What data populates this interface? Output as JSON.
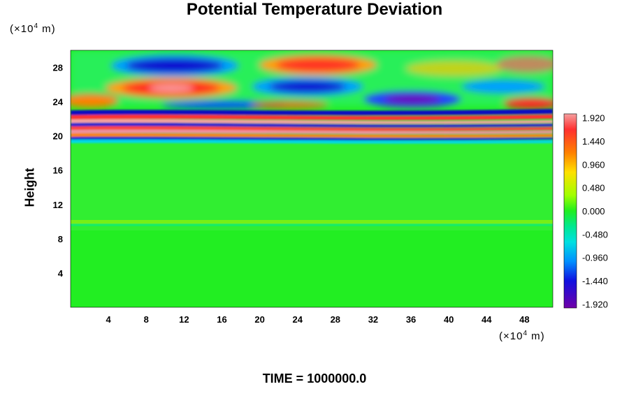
{
  "chart_data": {
    "type": "heatmap",
    "title": "Potential Temperature Deviation",
    "ylabel": "Height",
    "x_unit": {
      "prefix": "(×10",
      "exp": "4",
      "suffix": " m)"
    },
    "y_unit": {
      "prefix": "(×10",
      "exp": "4",
      "suffix": " m)"
    },
    "xlim": [
      0,
      51
    ],
    "ylim": [
      0,
      30
    ],
    "x_ticks": [
      4,
      8,
      12,
      16,
      20,
      24,
      28,
      32,
      36,
      40,
      44,
      48
    ],
    "y_ticks": [
      4,
      8,
      12,
      16,
      20,
      24,
      28
    ],
    "colorbar": {
      "range": [
        -2.0,
        2.0
      ],
      "tick_values": [
        1.92,
        1.44,
        0.96,
        0.48,
        0.0,
        -0.48,
        -0.96,
        -1.44,
        -1.92
      ],
      "tick_labels": [
        "1.920",
        "1.440",
        "0.960",
        "0.480",
        "0.000",
        "-0.480",
        "-0.960",
        "-1.440",
        "-1.920"
      ]
    },
    "grid": false,
    "annotation": "TIME = 1000000.0"
  },
  "colors": {
    "background_field": "#22ee22",
    "positive": "#ff2020",
    "negative": "#1010dd",
    "max": "#f08080",
    "min": "#7a00b0"
  }
}
